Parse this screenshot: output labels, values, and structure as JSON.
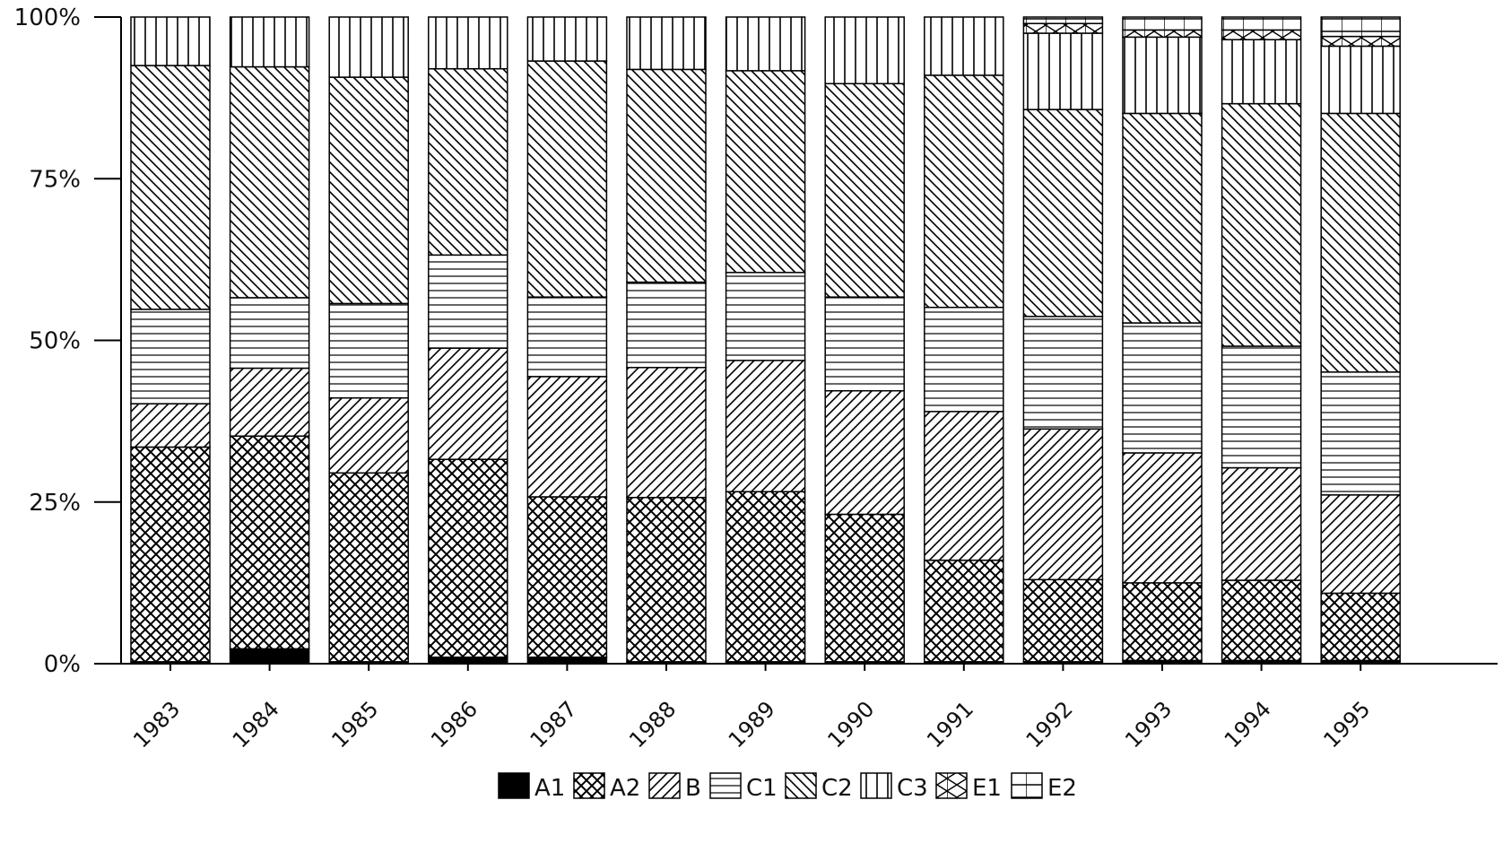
{
  "chart_data": {
    "type": "bar",
    "stacked": true,
    "percent": true,
    "title": "",
    "xlabel": "",
    "ylabel": "",
    "ylim": [
      0,
      100
    ],
    "yticks": [
      "0%",
      "25%",
      "50%",
      "75%",
      "100%"
    ],
    "categories": [
      "1983",
      "1984",
      "1985",
      "1986",
      "1987",
      "1988",
      "1989",
      "1990",
      "1991",
      "1992",
      "1993",
      "1994",
      "1995"
    ],
    "series": [
      {
        "name": "A1",
        "pattern": "solid",
        "values": [
          0.3,
          2.3,
          0.3,
          1.0,
          1.0,
          0.3,
          0.3,
          0.3,
          0.3,
          0.3,
          0.5,
          0.5,
          0.5
        ]
      },
      {
        "name": "A2",
        "pattern": "crosshatch",
        "values": [
          33.2,
          32.9,
          29.2,
          30.6,
          24.8,
          25.4,
          26.3,
          22.8,
          15.7,
          12.7,
          12.0,
          12.4,
          10.4
        ]
      },
      {
        "name": "B",
        "pattern": "diag-up",
        "values": [
          6.7,
          10.5,
          11.6,
          17.2,
          18.6,
          20.1,
          20.3,
          19.1,
          23.0,
          23.3,
          20.1,
          17.4,
          15.2
        ]
      },
      {
        "name": "C1",
        "pattern": "horizontal",
        "values": [
          14.6,
          10.9,
          14.6,
          14.4,
          12.3,
          13.2,
          13.6,
          14.5,
          16.1,
          17.4,
          20.1,
          18.8,
          19.0
        ]
      },
      {
        "name": "C2",
        "pattern": "diag-down",
        "values": [
          37.7,
          35.7,
          35.0,
          28.8,
          36.5,
          32.9,
          31.2,
          33.0,
          35.9,
          32.0,
          32.4,
          37.5,
          40.0
        ]
      },
      {
        "name": "C3",
        "pattern": "vertical",
        "values": [
          7.5,
          7.7,
          9.3,
          8.0,
          6.8,
          8.1,
          8.3,
          10.3,
          9.0,
          11.8,
          11.8,
          9.9,
          10.4
        ]
      },
      {
        "name": "E1",
        "pattern": "boxx",
        "values": [
          0,
          0,
          0,
          0,
          0,
          0,
          0,
          0,
          0,
          1.5,
          1.1,
          1.5,
          1.5
        ]
      },
      {
        "name": "E2",
        "pattern": "grid",
        "values": [
          0,
          0,
          0,
          0,
          0,
          0,
          0,
          0,
          0,
          1.0,
          2.0,
          2.0,
          3.0
        ]
      }
    ],
    "legend": {
      "position": "bottom-center",
      "entries": [
        "A1",
        "A2",
        "B",
        "C1",
        "C2",
        "C3",
        "E1",
        "E2"
      ]
    },
    "grid": false
  }
}
